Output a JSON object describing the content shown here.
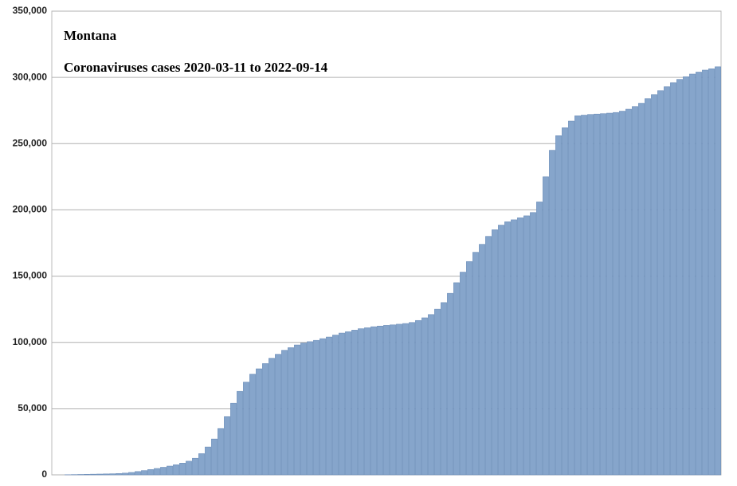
{
  "chart_data": {
    "type": "bar",
    "title": "Montana",
    "subtitle": "Coronaviruses cases 2020-03-11 to 2022-09-14",
    "values": [
      0,
      0,
      100,
      200,
      300,
      400,
      500,
      600,
      700,
      800,
      1000,
      1300,
      1800,
      2500,
      3200,
      4000,
      4800,
      5700,
      6600,
      7600,
      8800,
      10300,
      12500,
      16000,
      21000,
      27000,
      35000,
      44000,
      54000,
      63000,
      70000,
      76000,
      80000,
      84000,
      88000,
      91000,
      94000,
      96000,
      98000,
      99500,
      100500,
      101500,
      102800,
      104000,
      105500,
      107000,
      108000,
      109200,
      110300,
      111000,
      111800,
      112300,
      112800,
      113200,
      113700,
      114200,
      115000,
      116500,
      118500,
      121000,
      125000,
      130000,
      137000,
      145000,
      153000,
      161000,
      168000,
      174000,
      180000,
      185000,
      188500,
      191000,
      192500,
      194000,
      195500,
      198000,
      206000,
      225000,
      245000,
      256000,
      262000,
      267000,
      271000,
      271500,
      272000,
      272300,
      272600,
      273000,
      273500,
      274500,
      276000,
      278000,
      280500,
      284000,
      287000,
      290000,
      293000,
      296000,
      298500,
      300500,
      302500,
      304000,
      305500,
      306500,
      308000
    ],
    "color": "#86a5cb",
    "ylim": [
      0,
      350000
    ],
    "yticks": [
      {
        "value": 0,
        "label": "0"
      },
      {
        "value": 50000,
        "label": "50,000"
      },
      {
        "value": 100000,
        "label": "100,000"
      },
      {
        "value": 150000,
        "label": "150,000"
      },
      {
        "value": 200000,
        "label": "200,000"
      },
      {
        "value": 250000,
        "label": "250,000"
      },
      {
        "value": 300000,
        "label": "300,000"
      },
      {
        "value": 350000,
        "label": "350,000"
      }
    ],
    "grid": true
  }
}
